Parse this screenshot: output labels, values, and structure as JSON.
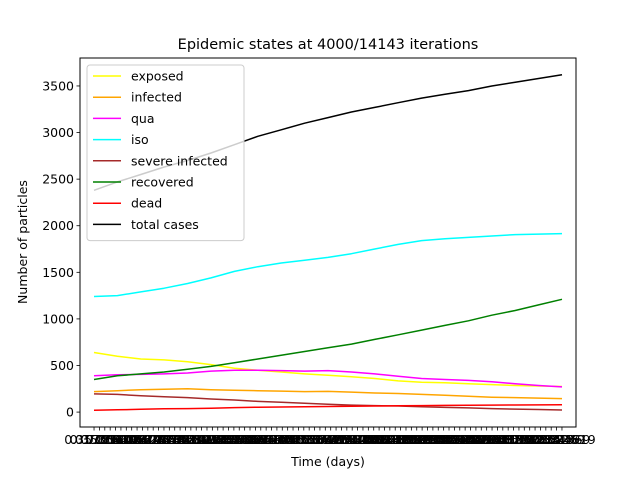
{
  "chart_data": {
    "type": "line",
    "title": "Epidemic states at 4000/14143 iterations",
    "xlabel": "Time (days)",
    "ylabel": "Number of particles",
    "ylim": [
      -160,
      3800
    ],
    "yticks": [
      0,
      500,
      1000,
      1500,
      2000,
      2500,
      3000,
      3500
    ],
    "xlim": [
      -0.3,
      10.3
    ],
    "xtick_labels": [
      "0.353553",
      "0.353553",
      "0.707107",
      "0.707107",
      "0.707107",
      "1.06066",
      "1.06066",
      "1.414214",
      "1.414214",
      "1.414214",
      "1.767767",
      "1.767767",
      "2.12132",
      "2.12132",
      "2.12132",
      "2.474619",
      "2.474619",
      "2.474619",
      "2.828427",
      "2.828427",
      "3.181981",
      "3.181981",
      "3.181981",
      "3.535534",
      "3.535534",
      "3.535534",
      "3.889087",
      "3.889087",
      "4.242641",
      "4.242641",
      "4.596194",
      "4.596194",
      "4.596194",
      "4.949747",
      "4.949747",
      "5.303301",
      "5.303301",
      "5.303301",
      "5.656854",
      "5.656854",
      "5.656854",
      "6.010408",
      "6.010408",
      "6.363961",
      "6.363961",
      "6.717514",
      "6.717514",
      "6.717514",
      "7.071068",
      "7.071068",
      "7.424621",
      "7.424621",
      "7.424621",
      "7.778175",
      "7.778175",
      "7.778175",
      "8.131728",
      "8.131728",
      "8.485281",
      "8.485281",
      "8.838835",
      "8.838835",
      "8.838835",
      "9.192388",
      "9.192388",
      "9.545942",
      "9.545942",
      "9.545942",
      "9.899495",
      "9.899495",
      "9.899495",
      "10.253048",
      "10.253048",
      "10.606602",
      "10.606602",
      "10.960155",
      "10.960155",
      "10.960155",
      "11.313708",
      "11.313708",
      "11.667262",
      "11.667262",
      "11.667262",
      "12.020815",
      "12.020815",
      "12.374369",
      "12.374369",
      "12.374619"
    ],
    "legend_position": "upper-left",
    "grid": false,
    "x": [
      0,
      0.5,
      1,
      1.5,
      2,
      2.5,
      3,
      3.5,
      4,
      4.5,
      5,
      5.5,
      6,
      6.5,
      7,
      7.5,
      8,
      8.5,
      9,
      9.5,
      10
    ],
    "series": [
      {
        "name": "exposed",
        "color": "#ffff00",
        "values": [
          640,
          600,
          570,
          560,
          540,
          510,
          470,
          450,
          430,
          410,
          395,
          380,
          360,
          335,
          320,
          315,
          305,
          295,
          285,
          280,
          275
        ]
      },
      {
        "name": "infected",
        "color": "#ffa500",
        "values": [
          220,
          230,
          240,
          245,
          250,
          240,
          235,
          230,
          225,
          220,
          222,
          215,
          205,
          200,
          190,
          180,
          170,
          160,
          155,
          150,
          145
        ]
      },
      {
        "name": "qua",
        "color": "#ff00ff",
        "values": [
          390,
          400,
          405,
          410,
          420,
          440,
          450,
          450,
          445,
          440,
          445,
          430,
          410,
          385,
          360,
          350,
          340,
          325,
          305,
          285,
          270
        ]
      },
      {
        "name": "iso",
        "color": "#00ffff",
        "values": [
          1240,
          1250,
          1290,
          1330,
          1380,
          1440,
          1510,
          1560,
          1600,
          1630,
          1660,
          1700,
          1750,
          1800,
          1840,
          1860,
          1875,
          1890,
          1905,
          1910,
          1915
        ]
      },
      {
        "name": "severe infected",
        "color": "#a52a2a",
        "values": [
          195,
          190,
          175,
          165,
          155,
          140,
          130,
          115,
          105,
          95,
          85,
          75,
          70,
          65,
          58,
          50,
          45,
          38,
          32,
          28,
          22
        ]
      },
      {
        "name": "recovered",
        "color": "#008000",
        "values": [
          350,
          390,
          410,
          430,
          460,
          490,
          530,
          570,
          610,
          650,
          690,
          730,
          780,
          830,
          880,
          930,
          980,
          1040,
          1090,
          1150,
          1210
        ]
      },
      {
        "name": "dead",
        "color": "#ff0000",
        "values": [
          20,
          25,
          30,
          35,
          38,
          42,
          48,
          52,
          55,
          58,
          60,
          62,
          65,
          68,
          70,
          72,
          74,
          75,
          76,
          77,
          78
        ]
      },
      {
        "name": "total cases",
        "color": "#000000",
        "values": [
          2380,
          2470,
          2550,
          2630,
          2700,
          2780,
          2870,
          2960,
          3030,
          3100,
          3160,
          3220,
          3270,
          3320,
          3370,
          3410,
          3450,
          3500,
          3540,
          3580,
          3620
        ]
      }
    ]
  }
}
